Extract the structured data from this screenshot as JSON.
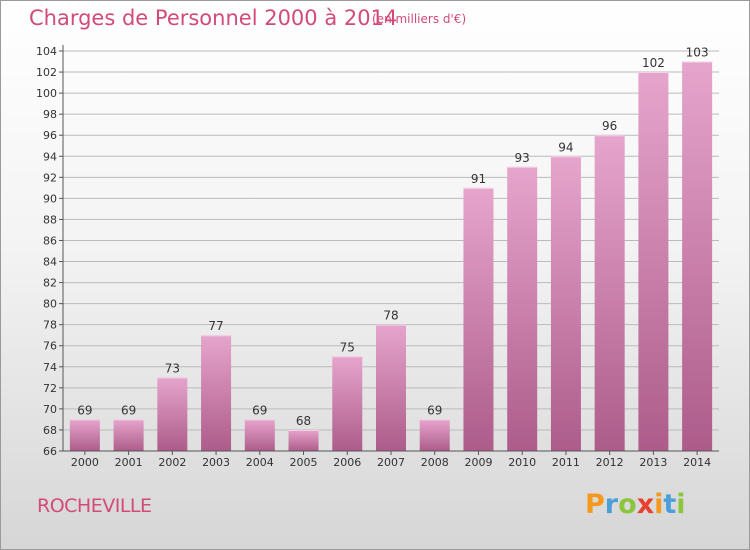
{
  "title": "Charges de Personnel 2000 à 2014",
  "subtitle": "(en milliers d'€)",
  "commune": "ROCHEVILLE",
  "logo": {
    "text": "Proxiti",
    "letters": [
      {
        "ch": "P",
        "color": "#f39a1e"
      },
      {
        "ch": "r",
        "color": "#4a9fd8"
      },
      {
        "ch": "o",
        "color": "#8cc63f"
      },
      {
        "ch": "x",
        "color": "#e8402f"
      },
      {
        "ch": "i",
        "color": "#f39a1e"
      },
      {
        "ch": "t",
        "color": "#4a9fd8"
      },
      {
        "ch": "i",
        "color": "#8cc63f"
      }
    ]
  },
  "colors": {
    "accent": "#d24a79",
    "bar_top": "#e6a5cc",
    "bar_bottom": "#ad5c8a",
    "grid": "#bbbbbb"
  },
  "chart_data": {
    "type": "bar",
    "categories": [
      "2000",
      "2001",
      "2002",
      "2003",
      "2004",
      "2005",
      "2006",
      "2007",
      "2008",
      "2009",
      "2010",
      "2011",
      "2012",
      "2013",
      "2014"
    ],
    "values": [
      69,
      69,
      73,
      77,
      69,
      68,
      75,
      78,
      69,
      91,
      93,
      94,
      96,
      102,
      103
    ],
    "ylim": [
      66,
      104
    ],
    "yticks": [
      66,
      68,
      70,
      72,
      74,
      76,
      78,
      80,
      82,
      84,
      86,
      88,
      90,
      92,
      94,
      96,
      98,
      100,
      102,
      104
    ],
    "grid": true,
    "data_labels": true
  }
}
